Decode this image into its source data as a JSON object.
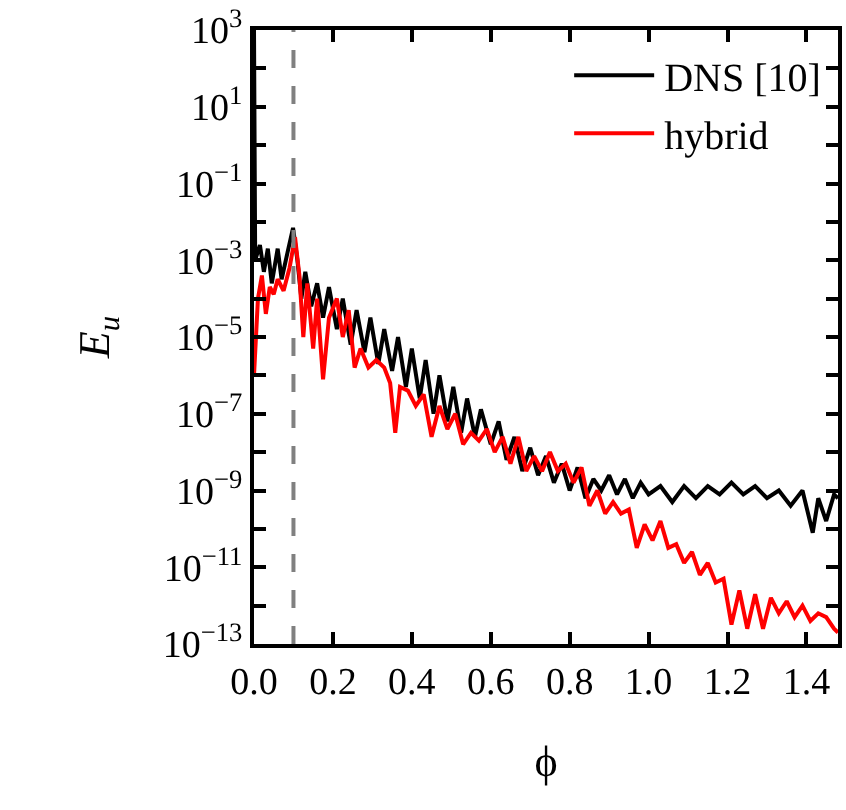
{
  "chart_data": {
    "type": "line",
    "xlabel": "ϕ",
    "ylabel": "E$_{u}$",
    "xlim": [
      0,
      1.48
    ],
    "xticks": [
      {
        "value": 0,
        "label": "0.0"
      },
      {
        "value": 0.2,
        "label": "0.2"
      },
      {
        "value": 0.4,
        "label": "0.4"
      },
      {
        "value": 0.6,
        "label": "0.6"
      },
      {
        "value": 0.8,
        "label": "0.8"
      },
      {
        "value": 1.0,
        "label": "1.0"
      },
      {
        "value": 1.2,
        "label": "1.2"
      },
      {
        "value": 1.4,
        "label": "1.4"
      }
    ],
    "ylim": [
      1e-13,
      1000
    ],
    "yticks": [
      {
        "value": 1e-13,
        "label": "10$^{−13}$"
      },
      {
        "value": 1e-12,
        "label": null
      },
      {
        "value": 1e-11,
        "label": "10$^{−11}$"
      },
      {
        "value": 1e-10,
        "label": null
      },
      {
        "value": 1e-09,
        "label": "10$^{−9}$"
      },
      {
        "value": 1e-08,
        "label": null
      },
      {
        "value": 1e-07,
        "label": "10$^{−7}$"
      },
      {
        "value": 1e-06,
        "label": null
      },
      {
        "value": 1e-05,
        "label": "10$^{−5}$"
      },
      {
        "value": 0.0001,
        "label": null
      },
      {
        "value": 0.001,
        "label": "10$^{−3}$"
      },
      {
        "value": 0.01,
        "label": null
      },
      {
        "value": 0.1,
        "label": "10$^{−1}$"
      },
      {
        "value": 1,
        "label": null
      },
      {
        "value": 10,
        "label": "10$^{1}$"
      },
      {
        "value": 100,
        "label": null
      },
      {
        "value": 1000,
        "label": "10$^{3}$"
      }
    ],
    "log": "y",
    "legend": "top right",
    "marker": "none",
    "line_style": "solid",
    "ref_lines": [
      {
        "axis": "x",
        "value": 0.1,
        "color": "#808080",
        "line_style": "dashed"
      }
    ],
    "series": [
      {
        "name": "DNS [10]",
        "color": "#000000",
        "x": [
          0,
          0.003,
          0.015,
          0.025,
          0.035,
          0.045,
          0.06,
          0.07,
          0.085,
          0.099,
          0.11,
          0.12,
          0.13,
          0.145,
          0.16,
          0.175,
          0.19,
          0.21,
          0.225,
          0.245,
          0.26,
          0.28,
          0.295,
          0.315,
          0.33,
          0.35,
          0.365,
          0.385,
          0.4,
          0.42,
          0.435,
          0.455,
          0.47,
          0.49,
          0.505,
          0.525,
          0.54,
          0.56,
          0.575,
          0.6,
          0.62,
          0.64,
          0.66,
          0.68,
          0.7,
          0.72,
          0.74,
          0.76,
          0.78,
          0.8,
          0.82,
          0.84,
          0.86,
          0.88,
          0.9,
          0.92,
          0.94,
          0.96,
          0.98,
          1.0,
          1.03,
          1.06,
          1.09,
          1.12,
          1.15,
          1.18,
          1.21,
          1.24,
          1.27,
          1.3,
          1.33,
          1.36,
          1.39,
          1.416,
          1.43,
          1.45,
          1.47,
          1.48
        ],
        "values": [
          1000,
          0.001,
          0.0025,
          0.0005,
          0.002,
          0.00025,
          0.002,
          0.00032,
          0.0016,
          0.007,
          0.001,
          0.0001,
          0.0005,
          6.3e-05,
          0.00025,
          3.2e-05,
          0.0002,
          1.6e-05,
          0.0001,
          6.3e-06,
          5e-05,
          4e-06,
          3.2e-05,
          2e-06,
          1.6e-05,
          1.3e-06,
          1e-05,
          5e-07,
          5e-06,
          2.5e-07,
          2.5e-06,
          1e-07,
          1e-06,
          6.3e-08,
          5e-07,
          3.2e-08,
          2.5e-07,
          2.5e-08,
          1.3e-07,
          1.6e-08,
          6.3e-08,
          6.3e-09,
          2.5e-08,
          3.2e-09,
          1.3e-08,
          2.5e-09,
          7.9e-09,
          1.6e-09,
          5e-09,
          1e-09,
          4e-09,
          6.3e-10,
          2e-09,
          1e-09,
          2.5e-09,
          7.9e-10,
          2e-09,
          6.3e-10,
          1.6e-09,
          7.9e-10,
          1.3e-09,
          5e-10,
          1.3e-09,
          6.3e-10,
          1.3e-09,
          7.9e-10,
          1.6e-09,
          7.9e-10,
          1.3e-09,
          6.3e-10,
          1e-09,
          4e-10,
          1e-09,
          7.9e-11,
          6.3e-10,
          1.6e-10,
          7.9e-10,
          6.3e-10
        ]
      },
      {
        "name": "hybrid",
        "color": "#ff0000",
        "x": [
          0,
          0.01,
          0.02,
          0.03,
          0.04,
          0.05,
          0.06,
          0.075,
          0.09,
          0.104,
          0.115,
          0.125,
          0.135,
          0.15,
          0.16,
          0.175,
          0.19,
          0.21,
          0.225,
          0.24,
          0.255,
          0.27,
          0.29,
          0.31,
          0.33,
          0.345,
          0.358,
          0.37,
          0.39,
          0.41,
          0.43,
          0.45,
          0.47,
          0.49,
          0.51,
          0.53,
          0.55,
          0.57,
          0.59,
          0.61,
          0.63,
          0.65,
          0.67,
          0.69,
          0.71,
          0.73,
          0.75,
          0.77,
          0.79,
          0.81,
          0.83,
          0.85,
          0.87,
          0.89,
          0.91,
          0.93,
          0.95,
          0.97,
          0.99,
          1.01,
          1.03,
          1.05,
          1.07,
          1.09,
          1.11,
          1.13,
          1.15,
          1.17,
          1.19,
          1.21,
          1.23,
          1.25,
          1.27,
          1.29,
          1.31,
          1.33,
          1.35,
          1.37,
          1.39,
          1.41,
          1.43,
          1.45,
          1.47,
          1.48
        ],
        "values": [
          1e-06,
          0.0001,
          0.0004,
          4e-05,
          0.0002,
          0.00013,
          0.00032,
          0.00016,
          0.00063,
          0.004,
          0.0004,
          1e-05,
          0.00025,
          5e-06,
          0.0001,
          7.9e-07,
          3.2e-05,
          0.0001,
          1e-05,
          5e-05,
          1.6e-06,
          5e-06,
          1.6e-06,
          2.5e-06,
          1.6e-06,
          6.3e-07,
          3.2e-08,
          5e-07,
          4e-07,
          1.6e-07,
          3.2e-07,
          2.5e-08,
          1.6e-07,
          4e-08,
          1e-07,
          1.6e-08,
          3.2e-08,
          2e-08,
          4e-08,
          1e-08,
          2.5e-08,
          5e-09,
          2.5e-08,
          3.2e-09,
          7.9e-09,
          3.2e-09,
          1e-08,
          3.2e-09,
          5e-09,
          1.6e-09,
          4e-09,
          4e-10,
          1e-09,
          2.5e-10,
          5e-10,
          2.5e-10,
          3.2e-10,
          3.2e-11,
          1.3e-10,
          5e-11,
          1.6e-10,
          3.2e-11,
          4e-11,
          1.3e-11,
          2.5e-11,
          6.3e-12,
          1.3e-11,
          4e-12,
          5e-12,
          3.2e-13,
          2.5e-12,
          2.5e-13,
          2e-12,
          2.5e-13,
          1.6e-12,
          6.3e-13,
          1.3e-12,
          5e-13,
          1e-12,
          4e-13,
          6.3e-13,
          5e-13,
          2.5e-13,
          2e-13
        ]
      }
    ]
  }
}
